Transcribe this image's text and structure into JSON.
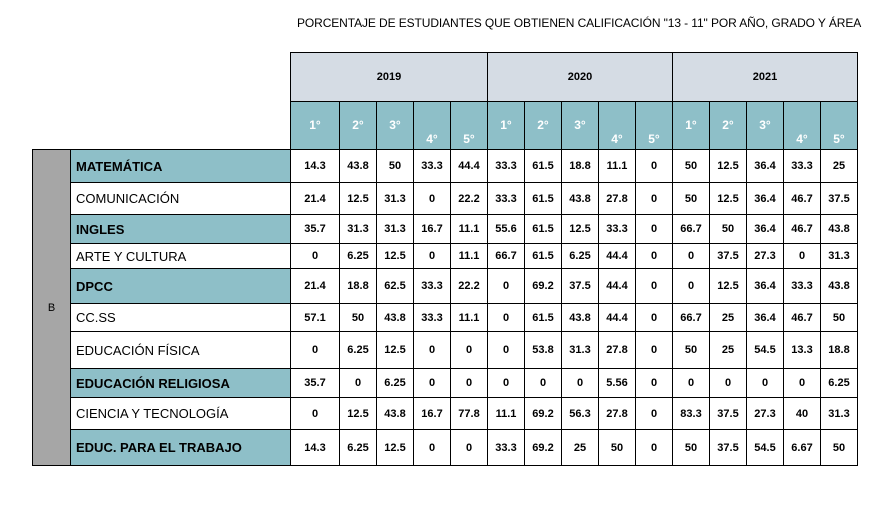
{
  "title": "PORCENTAJE DE ESTUDIANTES QUE OBTIENEN CALIFICACIÓN \"13 - 11\" POR AÑO, GRADO Y ÁREA",
  "years": [
    "2019",
    "2020",
    "2021"
  ],
  "grades": [
    "1°",
    "2°",
    "3°",
    "4°",
    "5°"
  ],
  "group_label": "B",
  "rows": [
    {
      "subject": "MATEMÁTICA",
      "values": [
        "14.3",
        "43.8",
        "50",
        "33.3",
        "44.4",
        "33.3",
        "61.5",
        "18.8",
        "11.1",
        "0",
        "50",
        "12.5",
        "36.4",
        "33.3",
        "25"
      ]
    },
    {
      "subject": "COMUNICACIÓN",
      "values": [
        "21.4",
        "12.5",
        "31.3",
        "0",
        "22.2",
        "33.3",
        "61.5",
        "43.8",
        "27.8",
        "0",
        "50",
        "12.5",
        "36.4",
        "46.7",
        "37.5"
      ]
    },
    {
      "subject": "INGLES",
      "values": [
        "35.7",
        "31.3",
        "31.3",
        "16.7",
        "11.1",
        "55.6",
        "61.5",
        "12.5",
        "33.3",
        "0",
        "66.7",
        "50",
        "36.4",
        "46.7",
        "43.8"
      ]
    },
    {
      "subject": "ARTE Y CULTURA",
      "values": [
        "0",
        "6.25",
        "12.5",
        "0",
        "11.1",
        "66.7",
        "61.5",
        "6.25",
        "44.4",
        "0",
        "0",
        "37.5",
        "27.3",
        "0",
        "31.3"
      ]
    },
    {
      "subject": "DPCC",
      "values": [
        "21.4",
        "18.8",
        "62.5",
        "33.3",
        "22.2",
        "0",
        "69.2",
        "37.5",
        "44.4",
        "0",
        "0",
        "12.5",
        "36.4",
        "33.3",
        "43.8"
      ]
    },
    {
      "subject": "CC.SS",
      "values": [
        "57.1",
        "50",
        "43.8",
        "33.3",
        "11.1",
        "0",
        "61.5",
        "43.8",
        "44.4",
        "0",
        "66.7",
        "25",
        "36.4",
        "46.7",
        "50"
      ]
    },
    {
      "subject": "EDUCACIÓN FÍSICA",
      "values": [
        "0",
        "6.25",
        "12.5",
        "0",
        "0",
        "0",
        "53.8",
        "31.3",
        "27.8",
        "0",
        "50",
        "25",
        "54.5",
        "13.3",
        "18.8"
      ]
    },
    {
      "subject": "EDUCACIÓN RELIGIOSA",
      "values": [
        "35.7",
        "0",
        "6.25",
        "0",
        "0",
        "0",
        "0",
        "0",
        "5.56",
        "0",
        "0",
        "0",
        "0",
        "0",
        "6.25"
      ]
    },
    {
      "subject": "CIENCIA Y TECNOLOGÍA",
      "values": [
        "0",
        "12.5",
        "43.8",
        "16.7",
        "77.8",
        "11.1",
        "69.2",
        "56.3",
        "27.8",
        "0",
        "83.3",
        "37.5",
        "27.3",
        "40",
        "31.3"
      ]
    },
    {
      "subject": "EDUC. PARA EL TRABAJO",
      "values": [
        "14.3",
        "6.25",
        "12.5",
        "0",
        "0",
        "33.3",
        "69.2",
        "25",
        "50",
        "0",
        "50",
        "37.5",
        "54.5",
        "6.67",
        "50"
      ]
    }
  ]
}
